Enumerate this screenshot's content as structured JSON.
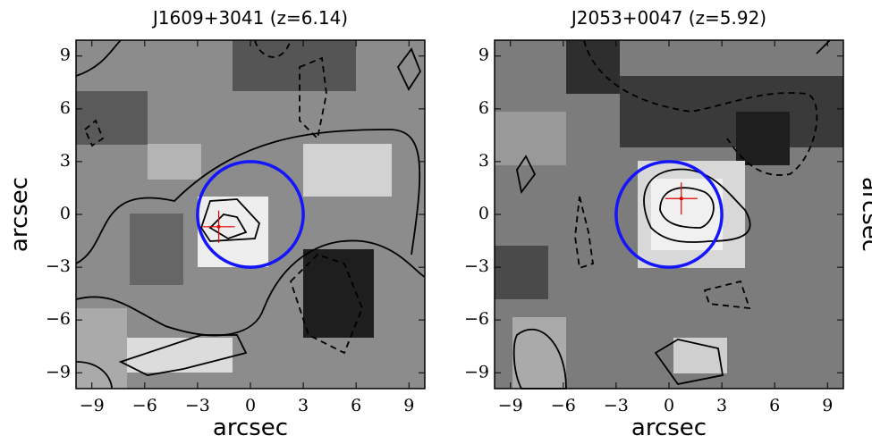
{
  "chart_data": [
    {
      "type": "image",
      "title": "J1609+3041 (z=6.14)",
      "xlabel": "arcsec",
      "ylabel": "arcsec",
      "xlim": [
        -9.9,
        9.9
      ],
      "ylim": [
        -9.9,
        9.9
      ],
      "xticks": [
        {
          "value": -9,
          "label": "−9"
        },
        {
          "value": -6,
          "label": "−6"
        },
        {
          "value": -3,
          "label": "−3"
        },
        0,
        3,
        6,
        9
      ],
      "yticks": [
        {
          "value": -9,
          "label": "−9"
        },
        {
          "value": -6,
          "label": "−6"
        },
        {
          "value": -3,
          "label": "−3"
        },
        0,
        3,
        6,
        9
      ],
      "circle": {
        "x": 0,
        "y": 0,
        "r": 3,
        "color": "#1414ff"
      },
      "marker": {
        "x": -1.8,
        "y": -0.7,
        "color": "#e00000"
      },
      "ylabel_side": "left"
    },
    {
      "type": "image",
      "title": "J2053+0047 (z=5.92)",
      "xlabel": "arcsec",
      "ylabel": "arcsec",
      "xlim": [
        -9.9,
        9.9
      ],
      "ylim": [
        -9.9,
        9.9
      ],
      "xticks": [
        {
          "value": -9,
          "label": "−9"
        },
        {
          "value": -6,
          "label": "−6"
        },
        {
          "value": -3,
          "label": "−3"
        },
        0,
        3,
        6,
        9
      ],
      "yticks": [
        {
          "value": -9,
          "label": "−9"
        },
        {
          "value": -6,
          "label": "−6"
        },
        {
          "value": -3,
          "label": "−3"
        },
        0,
        3,
        6,
        9
      ],
      "circle": {
        "x": 0,
        "y": 0,
        "r": 3,
        "color": "#1414ff"
      },
      "marker": {
        "x": 0.7,
        "y": 0.9,
        "color": "#e00000"
      },
      "ylabel_side": "right"
    }
  ]
}
